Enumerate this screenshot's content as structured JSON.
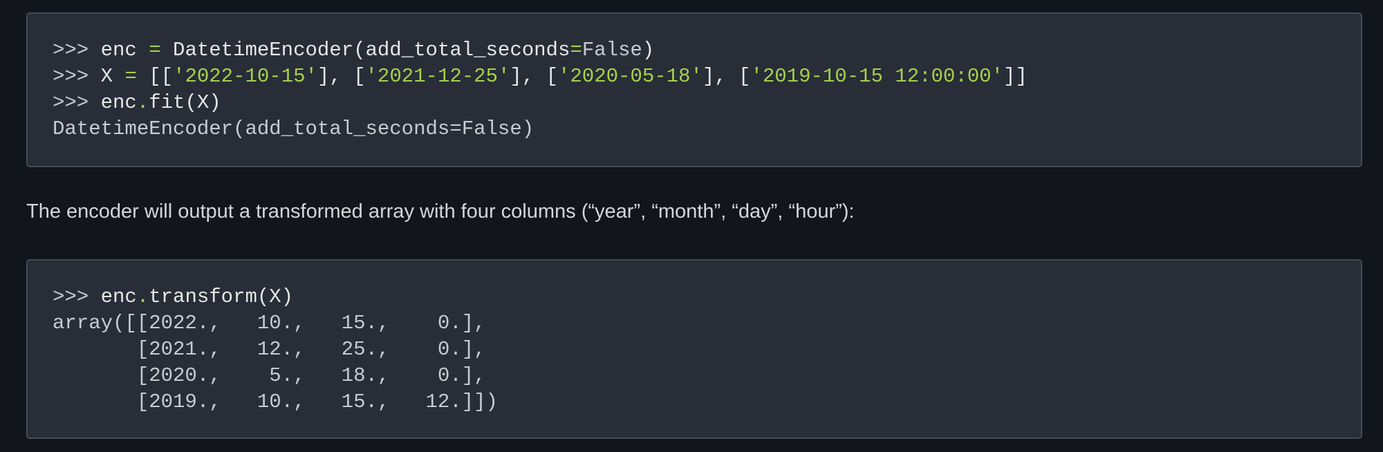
{
  "code_block_1": {
    "lines": [
      [
        {
          "t": ">>> ",
          "c": "p"
        },
        {
          "t": "enc ",
          "c": ""
        },
        {
          "t": "=",
          "c": "o"
        },
        {
          "t": " DatetimeEncoder(add_total_seconds",
          "c": ""
        },
        {
          "t": "=",
          "c": "o"
        },
        {
          "t": "False",
          "c": "k"
        },
        {
          "t": ")",
          "c": ""
        }
      ],
      [
        {
          "t": ">>> ",
          "c": "p"
        },
        {
          "t": "X ",
          "c": ""
        },
        {
          "t": "=",
          "c": "o"
        },
        {
          "t": " [[",
          "c": ""
        },
        {
          "t": "'2022-10-15'",
          "c": "s"
        },
        {
          "t": "], [",
          "c": ""
        },
        {
          "t": "'2021-12-25'",
          "c": "s"
        },
        {
          "t": "], [",
          "c": ""
        },
        {
          "t": "'2020-05-18'",
          "c": "s"
        },
        {
          "t": "], [",
          "c": ""
        },
        {
          "t": "'2019-10-15 12:00:00'",
          "c": "s"
        },
        {
          "t": "]]",
          "c": ""
        }
      ],
      [
        {
          "t": ">>> ",
          "c": "p"
        },
        {
          "t": "enc",
          "c": ""
        },
        {
          "t": ".",
          "c": "o"
        },
        {
          "t": "fit(X)",
          "c": ""
        }
      ],
      [
        {
          "t": "DatetimeEncoder(add_total_seconds=False)",
          "c": "out"
        }
      ]
    ]
  },
  "paragraph": "The encoder will output a transformed array with four columns (“year”, “month”, “day”, “hour”):",
  "code_block_2": {
    "lines": [
      [
        {
          "t": ">>> ",
          "c": "p"
        },
        {
          "t": "enc",
          "c": ""
        },
        {
          "t": ".",
          "c": "o"
        },
        {
          "t": "transform(X)",
          "c": ""
        }
      ],
      [
        {
          "t": "array([[2022.,   10.,   15.,    0.],",
          "c": "out"
        }
      ],
      [
        {
          "t": "       [2021.,   12.,   25.,    0.],",
          "c": "out"
        }
      ],
      [
        {
          "t": "       [2020.,    5.,   18.,    0.],",
          "c": "out"
        }
      ],
      [
        {
          "t": "       [2019.,   10.,   15.,   12.]])",
          "c": "out"
        }
      ]
    ]
  },
  "colors": {
    "background": "#12151c",
    "code_bg": "#282d38",
    "operator": "#a6d24a",
    "string": "#a6d24a"
  }
}
